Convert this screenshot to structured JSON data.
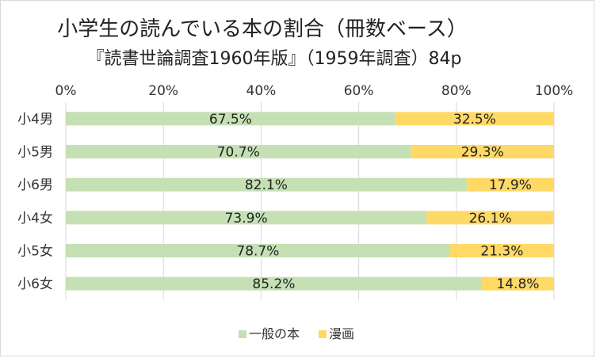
{
  "chart_data": {
    "type": "bar",
    "orientation": "horizontal",
    "stacked": "percent",
    "title": "小学生の読んでいる本の割合（冊数ベース）",
    "subtitle": "『読書世論調査1960年版』（1959年調査）84p",
    "categories": [
      "小4男",
      "小5男",
      "小6男",
      "小4女",
      "小5女",
      "小6女"
    ],
    "series": [
      {
        "name": "一般の本",
        "color": "#c5e0b4",
        "values": [
          67.5,
          70.7,
          82.1,
          73.9,
          78.7,
          85.2
        ],
        "labels": [
          "67.5%",
          "70.7%",
          "82.1%",
          "73.9%",
          "78.7%",
          "85.2%"
        ]
      },
      {
        "name": "漫画",
        "color": "#ffd966",
        "values": [
          32.5,
          29.3,
          17.9,
          26.1,
          21.3,
          14.8
        ],
        "labels": [
          "32.5%",
          "29.3%",
          "17.9%",
          "26.1%",
          "21.3%",
          "14.8%"
        ]
      }
    ],
    "xlim": [
      0,
      100
    ],
    "xticks": [
      "0%",
      "20%",
      "40%",
      "60%",
      "80%",
      "100%"
    ],
    "grid": true,
    "legend_position": "bottom"
  }
}
